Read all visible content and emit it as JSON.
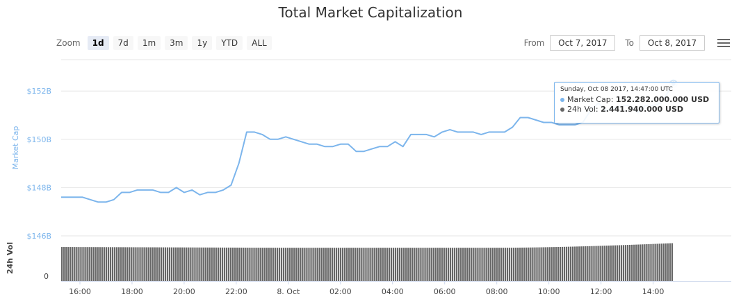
{
  "title": "Total Market Capitalization",
  "zoom": {
    "label": "Zoom",
    "buttons": [
      "1d",
      "7d",
      "1m",
      "3m",
      "1y",
      "YTD",
      "ALL"
    ],
    "active": "1d"
  },
  "range": {
    "from_label": "From",
    "from_value": "Oct 7, 2017",
    "to_label": "To",
    "to_value": "Oct 8, 2017"
  },
  "tooltip": {
    "header": "Sunday, Oct 08 2017, 14:47:00 UTC",
    "cap_label": "Market Cap:",
    "cap_value": "152.282.000.000 USD",
    "vol_label": "24h Vol:",
    "vol_value": "2.441.940.000 USD"
  },
  "colors": {
    "market_cap": "#7cb5ec",
    "volume": "#666666",
    "grid": "#e6e6e6"
  },
  "chart_data": {
    "type": "line",
    "title": "Total Market Capitalization",
    "x_tick_labels": [
      "16:00",
      "18:00",
      "20:00",
      "22:00",
      "8. Oct",
      "02:00",
      "04:00",
      "06:00",
      "08:00",
      "10:00",
      "12:00",
      "14:00"
    ],
    "x_range_hours": [
      -8.72,
      17.0
    ],
    "series": [
      {
        "name": "Market Cap",
        "ylabel": "Market Cap",
        "y_tick_labels": [
          "$146B",
          "$148B",
          "$150B",
          "$152B"
        ],
        "ylim": [
          146,
          153.3
        ],
        "unit": "billion USD",
        "x_hours": [
          -8.72,
          -8.5,
          -8.2,
          -7.9,
          -7.6,
          -7.3,
          -7.0,
          -6.7,
          -6.4,
          -6.1,
          -5.8,
          -5.5,
          -5.2,
          -4.9,
          -4.6,
          -4.3,
          -4.0,
          -3.7,
          -3.4,
          -3.1,
          -2.8,
          -2.5,
          -2.2,
          -1.9,
          -1.6,
          -1.3,
          -1.0,
          -0.7,
          -0.4,
          -0.1,
          0.2,
          0.5,
          0.8,
          1.1,
          1.4,
          1.7,
          2.0,
          2.3,
          2.6,
          2.9,
          3.2,
          3.5,
          3.8,
          4.1,
          4.4,
          4.7,
          5.0,
          5.3,
          5.6,
          5.9,
          6.2,
          6.5,
          6.8,
          7.1,
          7.4,
          7.7,
          8.0,
          8.3,
          8.6,
          8.9,
          9.2,
          9.5,
          9.8,
          10.1,
          10.4,
          10.7,
          11.0,
          11.3,
          11.6,
          11.9,
          12.2,
          12.5,
          12.8,
          13.1,
          13.4,
          13.7,
          14.0,
          14.3,
          14.6,
          14.78
        ],
        "values": [
          147.6,
          147.6,
          147.6,
          147.6,
          147.5,
          147.4,
          147.4,
          147.5,
          147.8,
          147.8,
          147.9,
          147.9,
          147.9,
          147.8,
          147.8,
          148.0,
          147.8,
          147.9,
          147.7,
          147.8,
          147.8,
          147.9,
          148.1,
          149.0,
          150.3,
          150.3,
          150.2,
          150.0,
          150.0,
          150.1,
          150.0,
          149.9,
          149.8,
          149.8,
          149.7,
          149.7,
          149.8,
          149.8,
          149.5,
          149.5,
          149.6,
          149.7,
          149.7,
          149.9,
          149.7,
          150.2,
          150.2,
          150.2,
          150.1,
          150.3,
          150.4,
          150.3,
          150.3,
          150.3,
          150.2,
          150.3,
          150.3,
          150.3,
          150.5,
          150.9,
          150.9,
          150.8,
          150.7,
          150.7,
          150.6,
          150.6,
          150.6,
          150.7,
          151.2,
          151.5,
          151.2,
          151.3,
          151.4,
          151.4,
          151.1,
          151.4,
          151.4,
          151.5,
          152.0,
          152.3
        ]
      },
      {
        "name": "24h Vol",
        "ylabel": "24h Vol",
        "y_tick_labels": [
          "0"
        ],
        "unit": "relative",
        "x_range_hours": [
          -8.72,
          14.78
        ],
        "start_level": 0.89,
        "mid_level": 0.87,
        "end_level": 0.99
      }
    ]
  }
}
